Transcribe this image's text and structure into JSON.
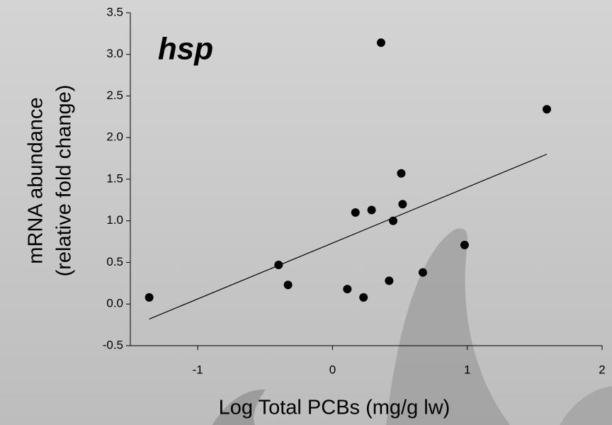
{
  "chart_data": {
    "type": "scatter",
    "title": "hsp",
    "x_label": "Log Total PCBs (mg/g lw)",
    "y_label": [
      "mRNA abundance",
      "(relative fold change)"
    ],
    "xlim": [
      -1.5,
      2
    ],
    "xticks": [
      -1,
      0,
      1,
      2
    ],
    "ylim": [
      -0.5,
      3.5
    ],
    "yticks": [
      -0.5,
      {
        "value": 0,
        "label": "0.0"
      },
      0.5,
      {
        "value": 1,
        "label": "1.0"
      },
      1.5,
      {
        "value": 2,
        "label": "2.0"
      },
      2.5,
      {
        "value": 3,
        "label": "3.0"
      },
      3.5
    ],
    "color": "#000000",
    "x": [
      -1.36,
      0.36,
      1.59,
      0.51,
      0.17,
      0.29,
      0.52,
      0.45,
      -0.4,
      -0.33,
      0.98,
      0.67,
      0.42,
      0.11,
      0.23
    ],
    "values": [
      0.08,
      3.14,
      2.34,
      1.57,
      1.1,
      1.13,
      1.2,
      1.0,
      0.47,
      0.23,
      0.71,
      0.38,
      0.28,
      0.18,
      0.08
    ],
    "trendline": {
      "x": [
        -1.36,
        1.59
      ],
      "y": [
        -0.18,
        1.8
      ]
    }
  }
}
